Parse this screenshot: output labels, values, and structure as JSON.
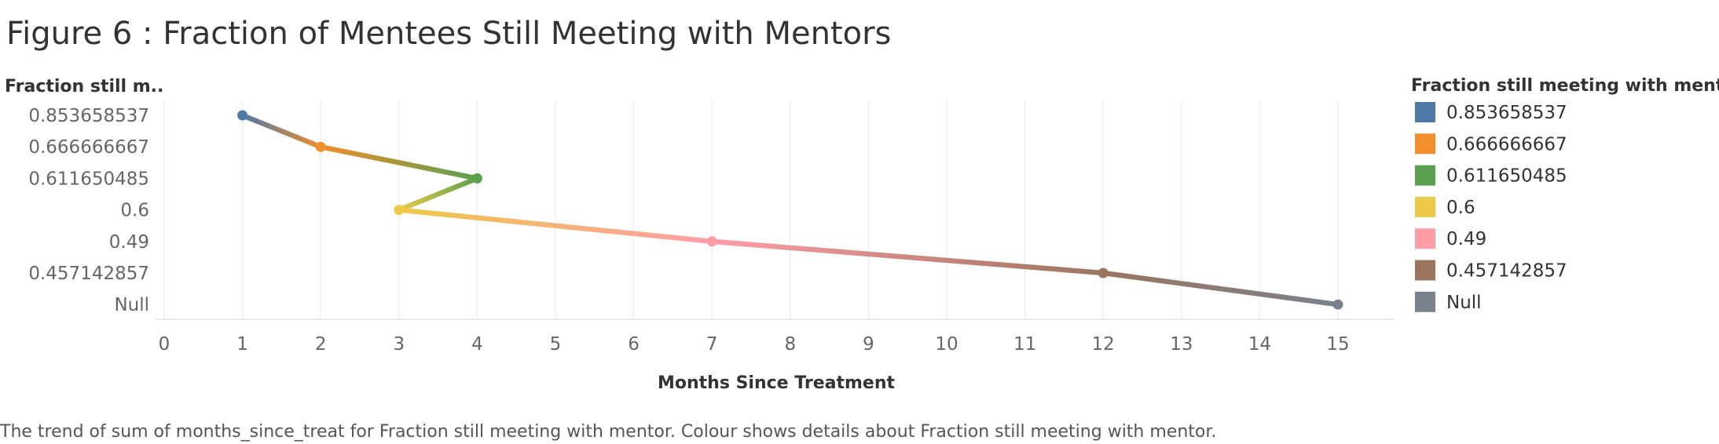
{
  "page": {
    "title": "Figure 6 : Fraction of Mentees Still Meeting with Mentors",
    "caption": "The trend of sum of months_since_treat for Fraction still meeting with mentor.  Colour shows details about Fraction still meeting with mentor."
  },
  "chart_data": {
    "type": "line",
    "title": "Figure 6 : Fraction of Mentees Still Meeting with Mentors",
    "xlabel": "Months Since Treatment",
    "ylabel": "Fraction still m..",
    "x_ticks": [
      "0",
      "1",
      "2",
      "3",
      "4",
      "5",
      "6",
      "7",
      "8",
      "9",
      "10",
      "11",
      "12",
      "13",
      "14",
      "15"
    ],
    "xlim": [
      0,
      15.8
    ],
    "y_categories": [
      "0.853658537",
      "0.666666667",
      "0.611650485",
      "0.6",
      "0.49",
      "0.457142857",
      "Null"
    ],
    "grid": "vertical",
    "legend_title": "Fraction still meeting with mentor",
    "legend_position": "right",
    "legend": [
      {
        "label": "0.853658537",
        "color": "#4e79a7"
      },
      {
        "label": "0.666666667",
        "color": "#f28e2b"
      },
      {
        "label": "0.611650485",
        "color": "#59a14f"
      },
      {
        "label": "0.6",
        "color": "#edc948"
      },
      {
        "label": "0.49",
        "color": "#ff9da7"
      },
      {
        "label": "0.457142857",
        "color": "#9c755f"
      },
      {
        "label": "Null",
        "color": "#79818c"
      }
    ],
    "points": [
      {
        "x": 1,
        "y": "0.853658537",
        "color": "#4e79a7"
      },
      {
        "x": 2,
        "y": "0.666666667",
        "color": "#f28e2b"
      },
      {
        "x": 4,
        "y": "0.611650485",
        "color": "#59a14f"
      },
      {
        "x": 3,
        "y": "0.6",
        "color": "#edc948"
      },
      {
        "x": 7,
        "y": "0.49",
        "color": "#ff9da7"
      },
      {
        "x": 12,
        "y": "0.457142857",
        "color": "#9c755f"
      },
      {
        "x": 15,
        "y": "Null",
        "color": "#79818c"
      }
    ],
    "colors": {
      "grid": "#ececec",
      "axis": "#e2e2e2"
    }
  }
}
